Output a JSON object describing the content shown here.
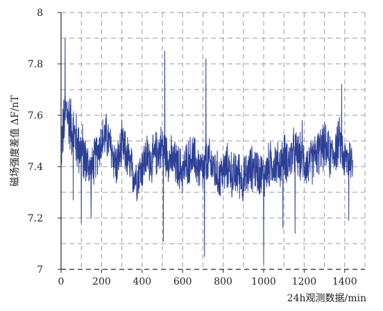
{
  "chart_data": {
    "type": "line",
    "title": "",
    "xlabel": "24h观测数据/min",
    "ylabel": "磁场强度差值 ΔF/nT",
    "xlim": [
      0,
      1500
    ],
    "ylim": [
      7.0,
      8.0
    ],
    "x_ticks": [
      "0",
      "200",
      "400",
      "600",
      "800",
      "1000",
      "1200",
      "1400"
    ],
    "y_ticks": [
      "7",
      "7.2",
      "7.4",
      "7.6",
      "7.8",
      "8"
    ],
    "grid": true,
    "grid_style": "dashed",
    "series_color": "#2b3f96",
    "series": [
      {
        "name": "",
        "x": [
          0,
          25,
          50,
          75,
          100,
          125,
          150,
          175,
          200,
          225,
          250,
          275,
          300,
          325,
          350,
          375,
          400,
          425,
          450,
          475,
          500,
          525,
          550,
          575,
          600,
          625,
          650,
          675,
          700,
          725,
          750,
          775,
          800,
          825,
          850,
          875,
          900,
          925,
          950,
          975,
          1000,
          1025,
          1050,
          1075,
          1100,
          1125,
          1150,
          1175,
          1200,
          1225,
          1250,
          1275,
          1300,
          1325,
          1350,
          1375,
          1400,
          1425,
          1440
        ],
        "y": [
          7.48,
          7.62,
          7.56,
          7.5,
          7.46,
          7.42,
          7.38,
          7.45,
          7.5,
          7.52,
          7.46,
          7.4,
          7.48,
          7.44,
          7.38,
          7.36,
          7.4,
          7.44,
          7.42,
          7.46,
          7.48,
          7.44,
          7.42,
          7.4,
          7.38,
          7.42,
          7.44,
          7.4,
          7.38,
          7.42,
          7.4,
          7.36,
          7.38,
          7.4,
          7.36,
          7.38,
          7.34,
          7.38,
          7.4,
          7.38,
          7.36,
          7.4,
          7.42,
          7.4,
          7.44,
          7.42,
          7.46,
          7.44,
          7.42,
          7.4,
          7.44,
          7.46,
          7.48,
          7.44,
          7.46,
          7.5,
          7.42,
          7.44,
          7.4
        ],
        "spikes": [
          {
            "x": 20,
            "y": 7.9
          },
          {
            "x": 60,
            "y": 7.27
          },
          {
            "x": 100,
            "y": 7.18
          },
          {
            "x": 148,
            "y": 7.2
          },
          {
            "x": 512,
            "y": 7.85
          },
          {
            "x": 505,
            "y": 7.11
          },
          {
            "x": 715,
            "y": 7.82
          },
          {
            "x": 708,
            "y": 7.05
          },
          {
            "x": 1000,
            "y": 7.02
          },
          {
            "x": 1095,
            "y": 7.16
          },
          {
            "x": 1155,
            "y": 7.14
          },
          {
            "x": 1190,
            "y": 7.58
          },
          {
            "x": 1385,
            "y": 7.72
          },
          {
            "x": 1420,
            "y": 7.19
          }
        ]
      }
    ]
  }
}
